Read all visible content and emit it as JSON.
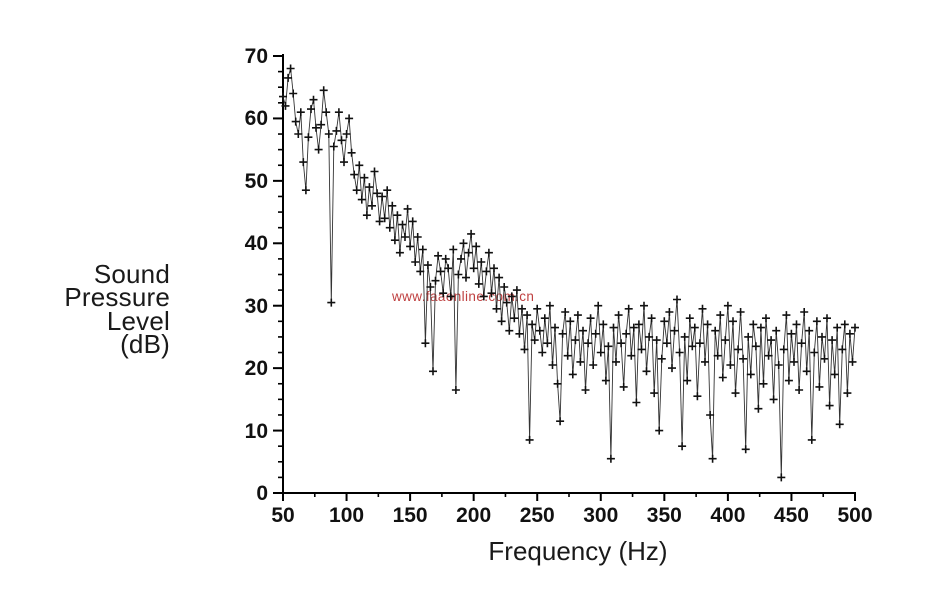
{
  "watermark": {
    "text": "www.faaonline.com.cn",
    "color": "#bf4040"
  },
  "chart_data": {
    "type": "line",
    "title": "",
    "xlabel": "Frequency (Hz)",
    "ylabel_lines": [
      "Sound",
      "Pressure",
      "Level",
      "(dB)"
    ],
    "xlim": [
      50,
      500
    ],
    "ylim": [
      0,
      70
    ],
    "x_ticks": [
      50,
      100,
      150,
      200,
      250,
      300,
      350,
      400,
      450,
      500
    ],
    "y_ticks": [
      0,
      10,
      20,
      30,
      40,
      50,
      60,
      70
    ],
    "x_minor_divisions": 2,
    "y_minor_divisions": 4,
    "grid": "off",
    "legend": "none",
    "marker": "plus",
    "line_color": "#111111",
    "x_start": 50,
    "x_step": 2,
    "values": [
      63.5,
      62,
      66.5,
      68,
      64,
      59.5,
      57.5,
      61,
      53,
      48.5,
      57,
      61.5,
      63,
      58.5,
      55,
      59,
      64.5,
      61,
      57.5,
      30.5,
      55.5,
      58,
      61,
      56.5,
      53,
      57.5,
      60,
      54.5,
      51,
      48.5,
      52.5,
      47,
      50.5,
      44.5,
      49,
      46,
      51.5,
      48,
      43.5,
      47.5,
      44,
      48.5,
      42.5,
      46,
      40.5,
      44.5,
      38.5,
      43,
      41,
      45.5,
      39.5,
      43.5,
      37,
      41,
      35.5,
      39,
      24,
      36.5,
      33,
      19.5,
      34,
      38,
      35.5,
      32,
      37.5,
      36,
      31.5,
      39,
      16.5,
      35,
      37.5,
      40,
      34.5,
      38.5,
      41.5,
      36,
      39.5,
      33.5,
      37,
      31.5,
      35.5,
      38.5,
      32,
      36,
      29.5,
      34.5,
      27.5,
      33,
      30.5,
      26,
      31.5,
      28,
      32.5,
      25.5,
      29.5,
      23,
      28.5,
      8.5,
      27,
      24.5,
      29.5,
      26,
      22.5,
      28,
      24,
      30,
      20.5,
      26.5,
      17.5,
      11.5,
      25.5,
      29,
      22,
      27.5,
      19,
      24.5,
      28.5,
      21,
      26,
      16.5,
      24,
      28,
      20.5,
      25.5,
      30,
      22.5,
      27,
      18,
      23.5,
      5.5,
      26.5,
      21,
      28.5,
      24,
      17,
      25.5,
      29.5,
      22,
      26.5,
      14.5,
      27,
      23,
      30,
      19.5,
      25,
      28,
      16,
      24.5,
      10,
      21.5,
      27.5,
      24,
      29,
      20,
      26,
      31,
      22.5,
      7.5,
      25,
      18,
      28,
      23.5,
      26.5,
      15.5,
      24,
      29.5,
      21,
      27,
      12.5,
      5.5,
      26,
      22,
      28.5,
      18.5,
      24.5,
      30,
      20.5,
      27.5,
      16,
      23,
      29,
      21.5,
      7,
      25,
      19,
      27,
      23.5,
      13.5,
      26.5,
      17.5,
      28,
      22,
      24.5,
      15,
      26,
      20.5,
      2.5,
      23,
      28.5,
      18,
      25.5,
      21,
      27,
      16.5,
      24,
      29,
      19.5,
      26,
      8.5,
      22.5,
      27.5,
      17,
      25,
      21.5,
      28,
      14,
      24.5,
      19,
      26.5,
      11,
      23,
      27,
      16,
      25.5,
      21,
      26.5
    ]
  }
}
